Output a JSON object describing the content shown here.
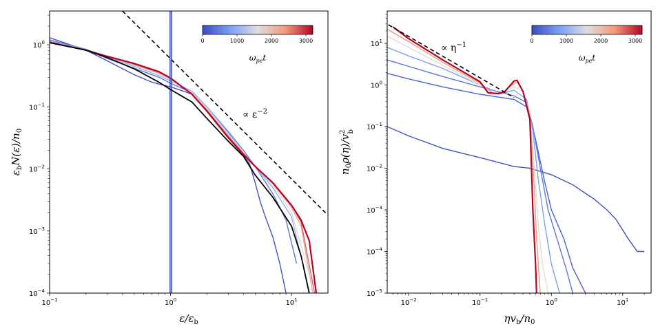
{
  "colors": {
    "early": "#3b4cc0",
    "mid": "#dddddd",
    "late": "#b40426",
    "fit": "#000000",
    "guide": "#000000"
  },
  "chart_data": [
    {
      "type": "line",
      "id": "left",
      "xlabel": "ε/ε_b",
      "ylabel": "ε_b N(ε)/n_0",
      "xscale": "log",
      "yscale": "log",
      "xlim": [
        0.1,
        20
      ],
      "ylim": [
        0.0001,
        3.5
      ],
      "xticks": [
        {
          "v": 0.1,
          "label": "10^-1"
        },
        {
          "v": 1,
          "label": "10^0"
        },
        {
          "v": 10,
          "label": "10^1"
        }
      ],
      "yticks": [
        {
          "v": 0.0001,
          "label": "10^-4"
        },
        {
          "v": 0.001,
          "label": "10^-3"
        },
        {
          "v": 0.01,
          "label": "10^-2"
        },
        {
          "v": 0.1,
          "label": "10^-1"
        },
        {
          "v": 1,
          "label": "10^0"
        }
      ],
      "annotation": "∝ ε^-2",
      "guide_line": {
        "x": [
          0.4,
          20
        ],
        "y": [
          3.5,
          0.0018
        ]
      },
      "fit_curve": {
        "x": [
          0.1,
          0.2,
          0.3,
          0.5,
          0.8,
          1.0,
          1.5,
          2.0,
          3.0,
          4.0,
          5.0,
          7.0,
          10.0,
          12.0,
          14.0
        ],
        "y": [
          1.08,
          0.82,
          0.62,
          0.41,
          0.25,
          0.19,
          0.12,
          0.065,
          0.028,
          0.016,
          0.008,
          0.0035,
          0.0012,
          0.0004,
          0.0001
        ]
      },
      "series": [
        {
          "t": 50,
          "x": [
            0.1,
            0.2,
            0.3,
            0.5,
            0.7,
            0.9,
            1.0,
            1.5,
            2.0,
            3.0,
            4.5,
            5.0,
            5.5,
            6.0,
            7.0,
            8.0,
            9.0
          ],
          "y": [
            1.3,
            0.82,
            0.55,
            0.33,
            0.25,
            0.22,
            0.21,
            0.16,
            0.1,
            0.035,
            0.012,
            0.006,
            0.003,
            0.0018,
            0.0008,
            0.0003,
            0.0001
          ]
        },
        {
          "t": 400,
          "x": [
            0.1,
            0.2,
            0.3,
            0.5,
            0.8,
            1.0,
            1.5,
            2.0,
            3.0,
            4.0,
            5.0,
            7.0,
            9.0,
            11.0
          ],
          "y": [
            1.2,
            0.85,
            0.6,
            0.42,
            0.3,
            0.24,
            0.17,
            0.1,
            0.04,
            0.02,
            0.011,
            0.004,
            0.0015,
            0.0003
          ]
        },
        {
          "t": 1000,
          "x": [
            0.1,
            0.2,
            0.3,
            0.5,
            0.8,
            1.0,
            1.5,
            2.0,
            3.0,
            4.0,
            5.0,
            7.0,
            10.0,
            13.0
          ],
          "y": [
            1.15,
            0.84,
            0.63,
            0.45,
            0.32,
            0.26,
            0.18,
            0.1,
            0.038,
            0.018,
            0.011,
            0.005,
            0.0017,
            0.0002
          ]
        },
        {
          "t": 1600,
          "x": [
            0.1,
            0.2,
            0.3,
            0.5,
            0.8,
            1.0,
            1.5,
            2.0,
            3.0,
            4.0,
            5.0,
            7.0,
            10.0,
            14.0
          ],
          "y": [
            1.12,
            0.83,
            0.64,
            0.47,
            0.34,
            0.27,
            0.17,
            0.095,
            0.036,
            0.018,
            0.011,
            0.0055,
            0.002,
            0.0002
          ]
        },
        {
          "t": 2200,
          "x": [
            0.1,
            0.2,
            0.3,
            0.5,
            0.8,
            1.0,
            1.5,
            2.0,
            3.0,
            4.0,
            5.0,
            7.0,
            10.0,
            12.0,
            15.0
          ],
          "y": [
            1.1,
            0.82,
            0.64,
            0.48,
            0.35,
            0.28,
            0.165,
            0.09,
            0.034,
            0.018,
            0.011,
            0.0058,
            0.0024,
            0.0012,
            0.0001
          ]
        },
        {
          "t": 2700,
          "x": [
            0.1,
            0.2,
            0.3,
            0.5,
            0.8,
            1.0,
            1.5,
            2.0,
            3.0,
            4.0,
            5.0,
            7.0,
            10.0,
            12.0,
            15.5
          ],
          "y": [
            1.1,
            0.82,
            0.65,
            0.49,
            0.36,
            0.29,
            0.16,
            0.088,
            0.033,
            0.018,
            0.011,
            0.006,
            0.0026,
            0.0014,
            0.0001
          ]
        },
        {
          "t": 3200,
          "x": [
            0.1,
            0.2,
            0.3,
            0.5,
            0.8,
            1.0,
            1.5,
            2.0,
            3.0,
            4.0,
            5.0,
            7.0,
            10.0,
            12.0,
            14.0,
            16.0
          ],
          "y": [
            1.1,
            0.82,
            0.65,
            0.5,
            0.37,
            0.29,
            0.16,
            0.085,
            0.032,
            0.017,
            0.011,
            0.006,
            0.0026,
            0.0015,
            0.0007,
            0.0001
          ]
        }
      ],
      "vlines": [
        0.99,
        1.02
      ],
      "colorbar": {
        "ticks": [
          0,
          1000,
          2000,
          3000
        ],
        "max": 3200,
        "label": "ω_pe t"
      }
    },
    {
      "type": "line",
      "id": "right",
      "xlabel": "η v_b / n_0",
      "ylabel": "n_0 ρ(η) / v_b^2",
      "xscale": "log",
      "yscale": "log",
      "xlim": [
        0.005,
        25
      ],
      "ylim": [
        1e-05,
        60
      ],
      "xticks": [
        {
          "v": 0.01,
          "label": "10^-2"
        },
        {
          "v": 0.1,
          "label": "10^-1"
        },
        {
          "v": 1,
          "label": "10^0"
        },
        {
          "v": 10,
          "label": "10^1"
        }
      ],
      "yticks": [
        {
          "v": 1e-05,
          "label": "10^-5"
        },
        {
          "v": 0.0001,
          "label": "10^-4"
        },
        {
          "v": 0.001,
          "label": "10^-3"
        },
        {
          "v": 0.01,
          "label": "10^-2"
        },
        {
          "v": 0.1,
          "label": "10^-1"
        },
        {
          "v": 1,
          "label": "10^0"
        },
        {
          "v": 10,
          "label": "10^1"
        }
      ],
      "annotation": "∝ η^-1",
      "guide_line": {
        "x": [
          0.0052,
          0.3
        ],
        "y": [
          28,
          0.5
        ]
      },
      "series": [
        {
          "t": 50,
          "x": [
            0.005,
            0.01,
            0.03,
            0.1,
            0.3,
            0.5,
            1.0,
            2.0,
            3.0,
            4.0,
            5.0,
            6.0,
            8.0,
            12.0,
            16.0,
            18.0,
            20.0
          ],
          "y": [
            0.1,
            0.06,
            0.03,
            0.018,
            0.011,
            0.01,
            0.007,
            0.004,
            0.0025,
            0.0018,
            0.0013,
            0.001,
            0.0006,
            0.0002,
            0.0001,
            0.0001,
            0.0001
          ]
        },
        {
          "t": 200,
          "x": [
            0.005,
            0.01,
            0.03,
            0.1,
            0.3,
            0.45,
            0.6,
            0.8,
            1.0,
            1.5,
            2.0,
            3.0
          ],
          "y": [
            1.9,
            1.4,
            0.9,
            0.6,
            0.45,
            0.3,
            0.05,
            0.005,
            0.001,
            0.0002,
            4e-05,
            1e-05
          ]
        },
        {
          "t": 400,
          "x": [
            0.005,
            0.01,
            0.03,
            0.1,
            0.3,
            0.45,
            0.55,
            0.7,
            0.9,
            1.2,
            1.6,
            2.0
          ],
          "y": [
            4.0,
            2.8,
            1.6,
            0.9,
            0.55,
            0.38,
            0.1,
            0.01,
            0.001,
            0.0002,
            4e-05,
            1e-05
          ]
        },
        {
          "t": 800,
          "x": [
            0.005,
            0.01,
            0.03,
            0.1,
            0.2,
            0.3,
            0.45,
            0.55,
            0.65,
            0.8,
            1.0,
            1.3
          ],
          "y": [
            8.0,
            5.0,
            2.5,
            1.0,
            0.62,
            0.75,
            0.45,
            0.08,
            0.006,
            0.0005,
            5e-05,
            1e-05
          ]
        },
        {
          "t": 1600,
          "x": [
            0.005,
            0.01,
            0.03,
            0.1,
            0.15,
            0.2,
            0.3,
            0.4,
            0.5,
            0.58,
            0.65,
            0.75,
            0.9
          ],
          "y": [
            15.0,
            8.0,
            3.0,
            1.0,
            0.65,
            0.62,
            0.9,
            0.7,
            0.2,
            0.01,
            0.0005,
            5e-05,
            1e-05
          ]
        },
        {
          "t": 2400,
          "x": [
            0.005,
            0.01,
            0.03,
            0.1,
            0.15,
            0.2,
            0.3,
            0.33,
            0.4,
            0.5,
            0.57,
            0.62,
            0.7
          ],
          "y": [
            22.0,
            11.0,
            3.5,
            1.1,
            0.65,
            0.62,
            1.1,
            1.2,
            0.7,
            0.2,
            0.005,
            0.0002,
            1e-05
          ]
        },
        {
          "t": 3200,
          "x": [
            0.006,
            0.01,
            0.03,
            0.1,
            0.13,
            0.18,
            0.22,
            0.3,
            0.33,
            0.4,
            0.5,
            0.55,
            0.6,
            0.62
          ],
          "y": [
            25.0,
            13.0,
            4.0,
            1.2,
            0.65,
            0.62,
            0.68,
            1.25,
            1.3,
            0.7,
            0.15,
            0.001,
            5e-05,
            1e-05
          ]
        }
      ],
      "colorbar": {
        "ticks": [
          0,
          1000,
          2000,
          3000
        ],
        "max": 3200,
        "label": "ω_pe t"
      }
    }
  ]
}
